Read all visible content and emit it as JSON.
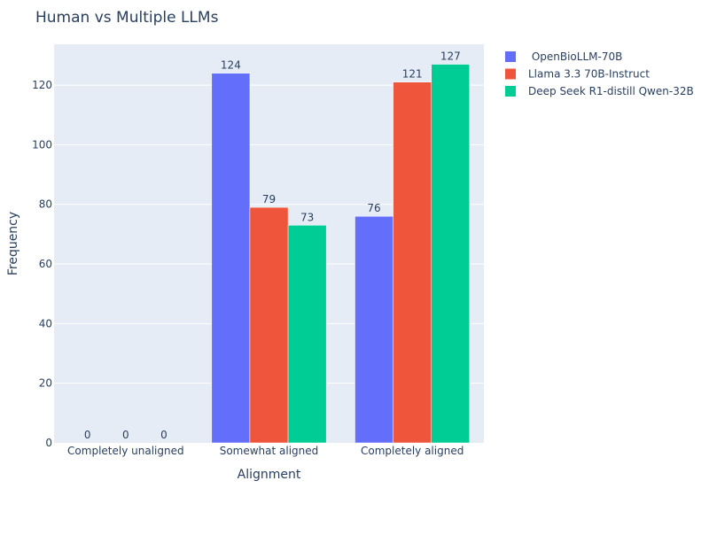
{
  "chart_data": {
    "type": "bar",
    "title": "Human vs Multiple LLMs",
    "xlabel": "Alignment",
    "ylabel": "Frequency",
    "categories": [
      "Completely unaligned",
      "Somewhat aligned",
      "Completely aligned"
    ],
    "series": [
      {
        "name": " OpenBioLLM-70B",
        "color": "#636efa",
        "values": [
          0,
          124,
          76
        ]
      },
      {
        "name": "Llama 3.3 70B-Instruct",
        "color": "#ef553b",
        "values": [
          0,
          79,
          121
        ]
      },
      {
        "name": "Deep Seek R1-distill Qwen-32B",
        "color": "#00cc96",
        "values": [
          0,
          73,
          127
        ]
      }
    ],
    "ylim": [
      0,
      133.7
    ],
    "yticks": [
      0,
      20,
      40,
      60,
      80,
      100,
      120
    ],
    "grid": true,
    "legend": "top-right",
    "plot_background": "#e5ecf6",
    "show_data_labels": true
  }
}
